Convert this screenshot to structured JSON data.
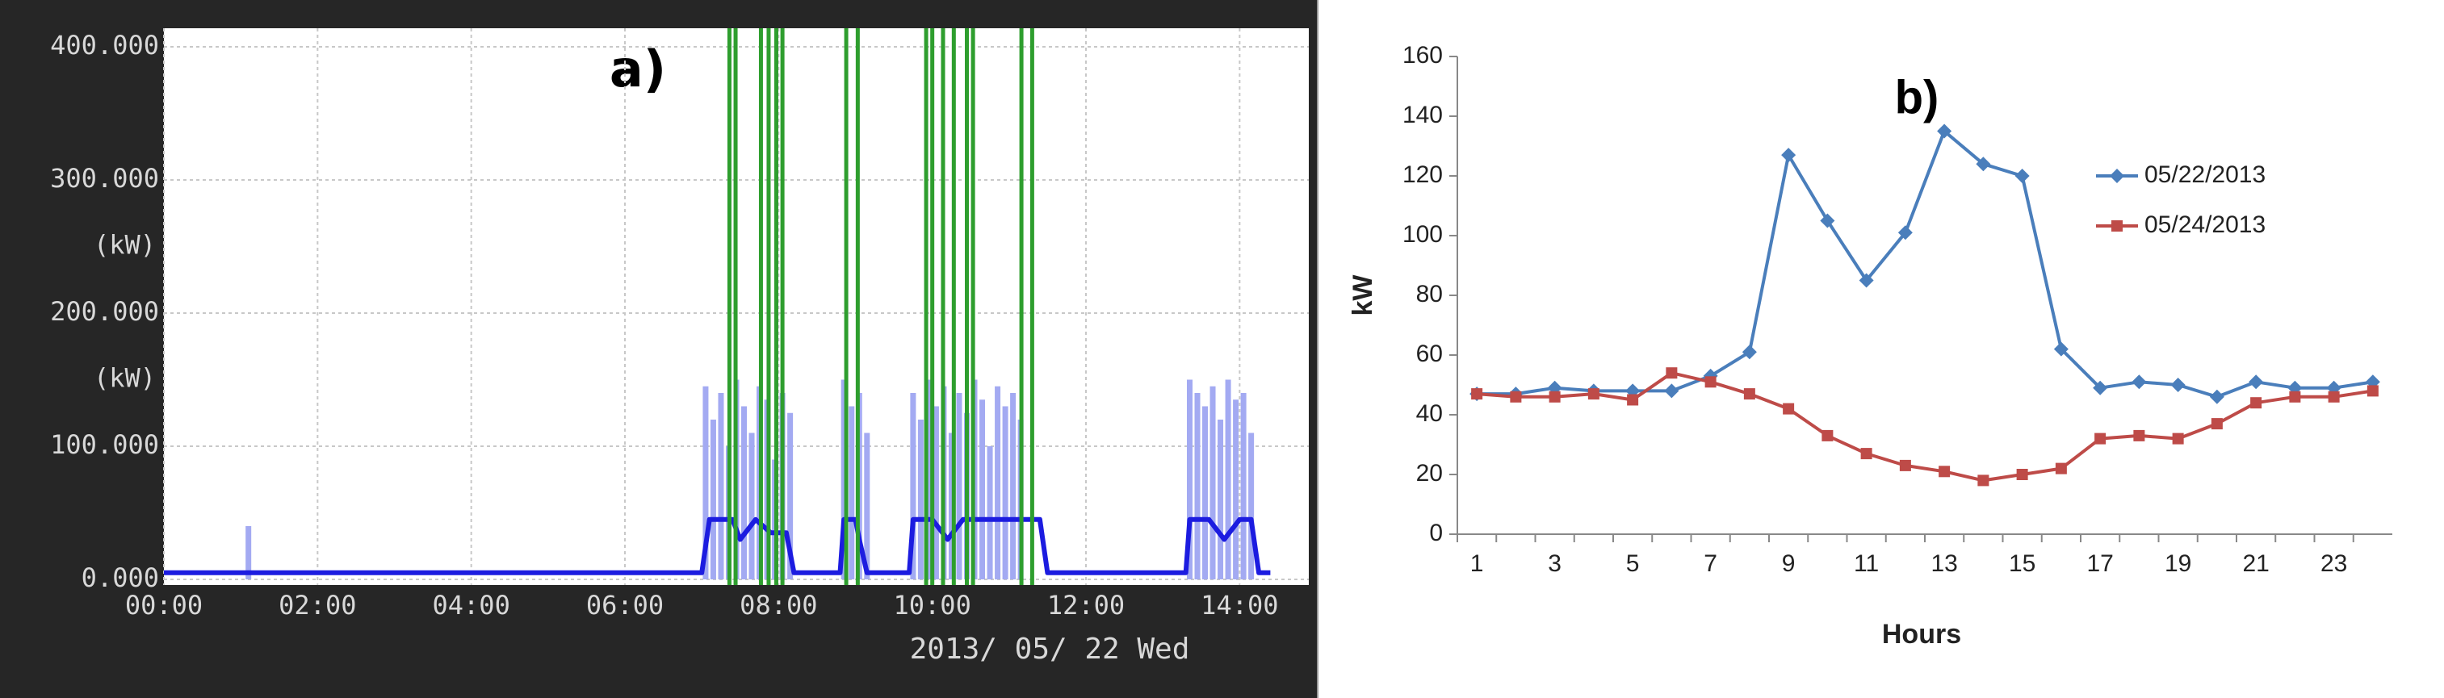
{
  "chart_data": [
    {
      "type": "line",
      "annotation": "a)",
      "xlabel": "2013/ 05/ 22 Wed",
      "unit_labels": [
        "(kW)",
        "(kW)"
      ],
      "xlim": [
        0,
        14.9
      ],
      "xticks": [
        {
          "value": 0,
          "label": "00:00"
        },
        {
          "value": 2,
          "label": "02:00"
        },
        {
          "value": 4,
          "label": "04:00"
        },
        {
          "value": 6,
          "label": "06:00"
        },
        {
          "value": 8,
          "label": "08:00"
        },
        {
          "value": 10,
          "label": "10:00"
        },
        {
          "value": 12,
          "label": "12:00"
        },
        {
          "value": 14,
          "label": "14:00"
        }
      ],
      "ylim": [
        0,
        400
      ],
      "yticks": [
        {
          "value": 0,
          "label": "0.000"
        },
        {
          "value": 100,
          "label": "100.000"
        },
        {
          "value": 200,
          "label": "200.000"
        },
        {
          "value": 300,
          "label": "300.000"
        },
        {
          "value": 400,
          "label": "400.000"
        }
      ],
      "grid": true,
      "series": [
        {
          "type": "bar",
          "color": "#a3aaf2",
          "x": [
            1.1,
            7.05,
            7.15,
            7.25,
            7.35,
            7.45,
            7.55,
            7.65,
            7.75,
            7.85,
            7.95,
            8.05,
            8.15,
            8.85,
            8.95,
            9.05,
            9.15,
            9.75,
            9.85,
            9.95,
            10.05,
            10.15,
            10.25,
            10.35,
            10.45,
            10.55,
            10.65,
            10.75,
            10.85,
            10.95,
            11.05,
            11.15,
            13.35,
            13.45,
            13.55,
            13.65,
            13.75,
            13.85,
            13.95,
            14.05,
            14.15
          ],
          "values": [
            40,
            145,
            120,
            140,
            100,
            150,
            130,
            110,
            145,
            135,
            90,
            140,
            125,
            150,
            130,
            140,
            110,
            140,
            120,
            150,
            130,
            145,
            110,
            140,
            125,
            150,
            135,
            100,
            145,
            130,
            140,
            120,
            150,
            140,
            130,
            145,
            120,
            150,
            135,
            140,
            110
          ]
        },
        {
          "type": "line",
          "color": "#1c1ce0",
          "x": [
            0,
            7.0,
            7.1,
            7.4,
            7.5,
            7.7,
            7.9,
            8.1,
            8.2,
            8.8,
            8.85,
            9.0,
            9.05,
            9.15,
            9.7,
            9.75,
            10.0,
            10.2,
            10.4,
            10.6,
            11.0,
            11.4,
            11.5,
            13.3,
            13.35,
            13.6,
            13.8,
            14.0,
            14.15,
            14.25,
            14.4
          ],
          "values": [
            5,
            5,
            45,
            45,
            30,
            45,
            35,
            35,
            5,
            5,
            45,
            45,
            30,
            5,
            5,
            45,
            45,
            30,
            45,
            45,
            45,
            45,
            5,
            5,
            45,
            45,
            30,
            45,
            45,
            5,
            5
          ]
        }
      ],
      "vlines": {
        "color": "#2e9e2e",
        "x": [
          7.36,
          7.44,
          7.77,
          7.87,
          7.97,
          8.05,
          8.88,
          9.03,
          9.92,
          10.0,
          10.14,
          10.28,
          10.45,
          10.53,
          11.16,
          11.3
        ]
      }
    },
    {
      "type": "line",
      "annotation": "b)",
      "xlabel": "Hours",
      "ylabel": "kW",
      "categories": [
        1,
        null,
        3,
        null,
        5,
        null,
        7,
        null,
        9,
        null,
        11,
        null,
        13,
        null,
        15,
        null,
        17,
        null,
        19,
        null,
        21,
        null,
        23,
        null
      ],
      "ylim": [
        0,
        160
      ],
      "yticks": [
        0,
        20,
        40,
        60,
        80,
        100,
        120,
        140,
        160
      ],
      "legend": "right",
      "series": [
        {
          "name": "05/22/2013",
          "color": "#4a7ebb",
          "marker": "diamond",
          "values": [
            47,
            47,
            49,
            48,
            48,
            48,
            53,
            61,
            127,
            105,
            85,
            101,
            135,
            124,
            120,
            62,
            49,
            51,
            50,
            46,
            51,
            49,
            49,
            51
          ]
        },
        {
          "name": "05/24/2013",
          "color": "#be4b48",
          "marker": "square",
          "values": [
            47,
            46,
            46,
            47,
            45,
            54,
            51,
            47,
            42,
            33,
            27,
            23,
            21,
            18,
            20,
            22,
            32,
            33,
            32,
            37,
            44,
            46,
            46,
            48
          ]
        }
      ]
    }
  ]
}
